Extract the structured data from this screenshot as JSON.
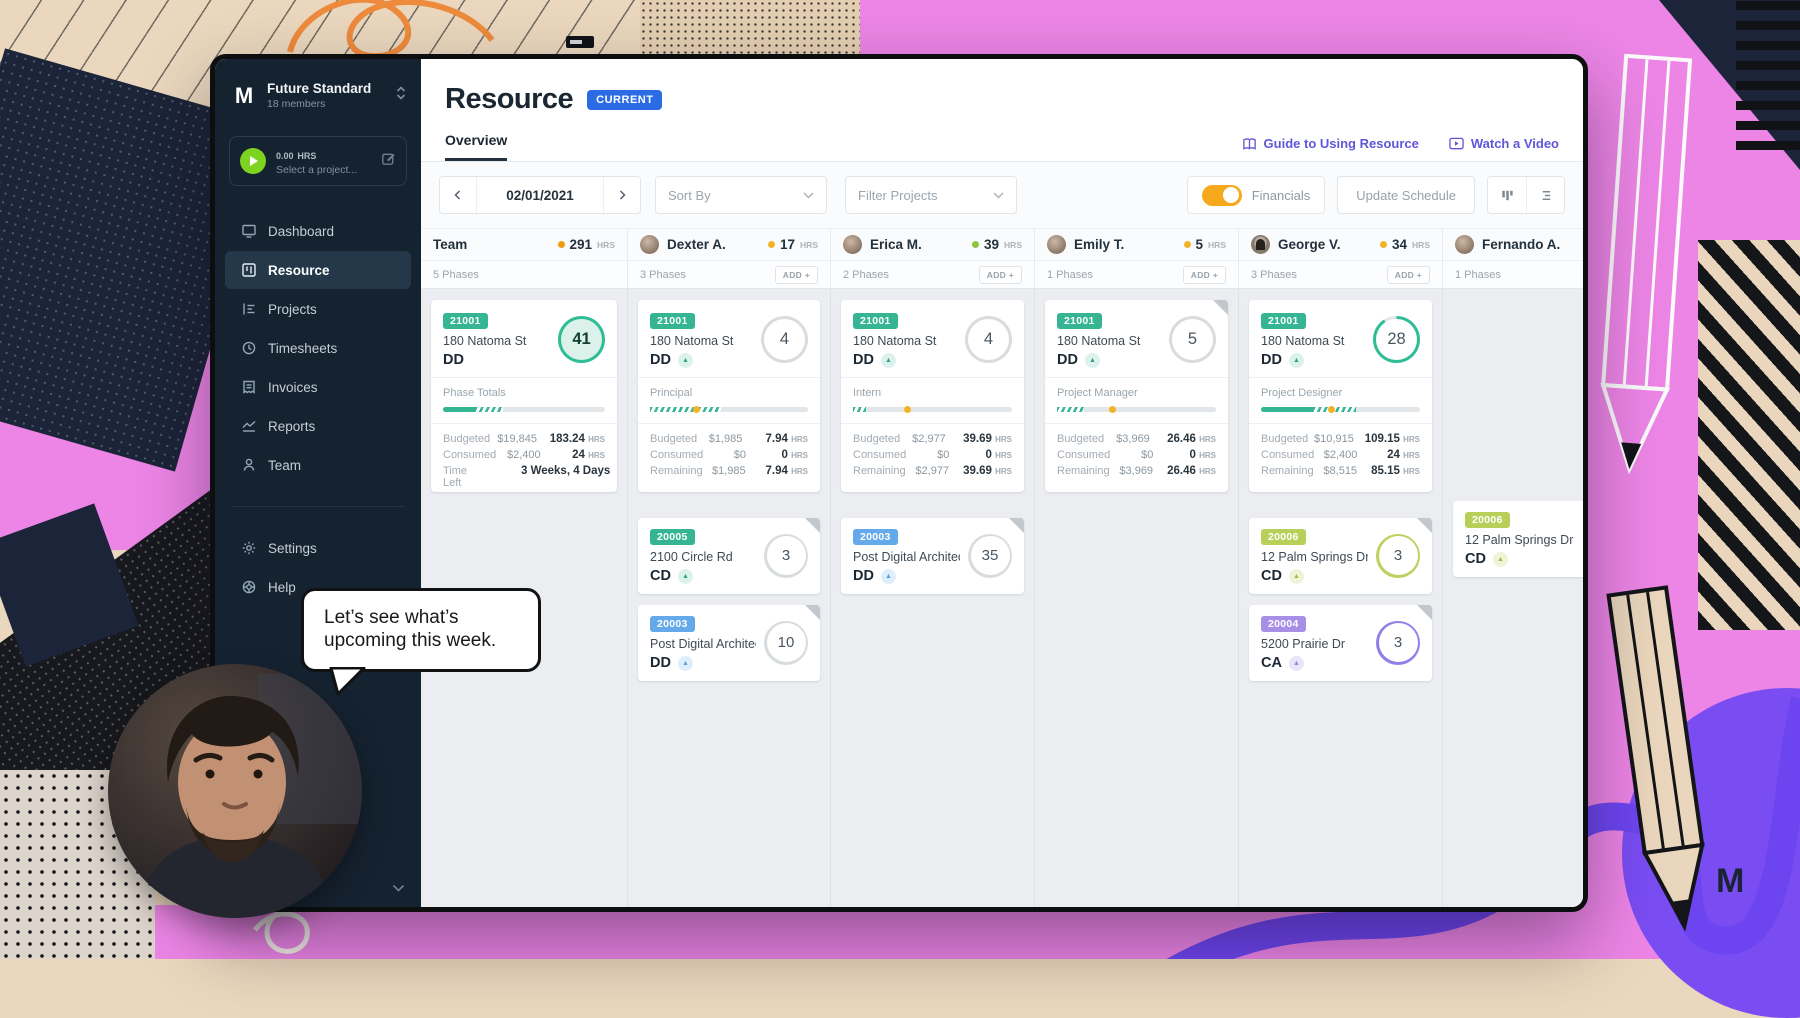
{
  "colors": {
    "accent_teal": "#35b593",
    "accent_blue": "#64a9e9",
    "accent_lime": "#b8cf59",
    "accent_purple": "#a78fe6",
    "ring_gray": "#d8dcdf",
    "dot_yellow": "#f2b32a",
    "dot_orange": "#ef9d10",
    "dot_green": "#8fc43f",
    "toggle_on": "#f6a91c",
    "current_badge": "#2b6be4",
    "link_purple": "#6156d8",
    "sidebar_bg": "#152230"
  },
  "brand": {
    "logo_glyph": "M"
  },
  "sidebar": {
    "workspace": {
      "name": "Future Standard",
      "members": "18 members"
    },
    "timer": {
      "hours": "0.00",
      "unit": "HRS",
      "placeholder": "Select a project..."
    },
    "nav": [
      {
        "label": "Dashboard"
      },
      {
        "label": "Resource"
      },
      {
        "label": "Projects"
      },
      {
        "label": "Timesheets"
      },
      {
        "label": "Invoices"
      },
      {
        "label": "Reports"
      },
      {
        "label": "Team"
      }
    ],
    "nav_bottom": [
      {
        "label": "Settings"
      },
      {
        "label": "Help"
      }
    ]
  },
  "header": {
    "title": "Resource",
    "badge": "CURRENT",
    "tab": "Overview",
    "guide_link": "Guide to Using Resource",
    "video_link": "Watch a Video"
  },
  "toolbar": {
    "date": "02/01/2021",
    "sort_by": "Sort By",
    "filter": "Filter Projects",
    "financials": "Financials",
    "update": "Update Schedule"
  },
  "board": {
    "columns": [
      {
        "name": "Team",
        "hrs": "291",
        "unit": "HRS",
        "phases": "5 Phases",
        "add": "",
        "dot": "#ef9d10"
      },
      {
        "name": "Dexter A.",
        "hrs": "17",
        "unit": "HRS",
        "phases": "3 Phases",
        "add": "ADD +",
        "dot": "#f2b32a"
      },
      {
        "name": "Erica M.",
        "hrs": "39",
        "unit": "HRS",
        "phases": "2 Phases",
        "add": "ADD +",
        "dot": "#8fc43f"
      },
      {
        "name": "Emily T.",
        "hrs": "5",
        "unit": "HRS",
        "phases": "1 Phases",
        "add": "ADD +",
        "dot": "#f2b32a"
      },
      {
        "name": "George V.",
        "hrs": "34",
        "unit": "HRS",
        "phases": "3 Phases",
        "add": "ADD +",
        "dot": "#f2b32a"
      },
      {
        "name": "Fernando A.",
        "hrs": "",
        "unit": "",
        "phases": "1 Phases",
        "add": "",
        "dot": ""
      }
    ],
    "row1": [
      {
        "code": "21001",
        "name": "180 Natoma St",
        "stage": "DD",
        "count": "41",
        "section": "Phase Totals",
        "badge_color": "#35b593",
        "stage_color": "",
        "stage_bg": "",
        "ring": {
          "color": "#2fbd96",
          "fill": "#dcf1e9",
          "pct": 100
        },
        "progress": {
          "solid": 20,
          "hatch": 17,
          "marker": -1
        },
        "fin": [
          {
            "label": "Budgeted",
            "money": "$19,845",
            "val": "183.24",
            "unit": "HRS"
          },
          {
            "label": "Consumed",
            "money": "$2,400",
            "val": "24",
            "unit": "HRS"
          },
          {
            "label": "Time Left",
            "money": "",
            "val": "3 Weeks, 4 Days",
            "unit": ""
          }
        ]
      },
      {
        "code": "21001",
        "name": "180 Natoma St",
        "stage": "DD",
        "count": "4",
        "section": "Principal",
        "badge_color": "#35b593",
        "stage_color": "#2fa486",
        "stage_bg": "#ddf2ec",
        "ring": {
          "color": "#d8dcdf",
          "fill": "#ffffff",
          "pct": 100
        },
        "progress": {
          "solid": 0,
          "hatch": 45,
          "marker": 27
        },
        "fin": [
          {
            "label": "Budgeted",
            "money": "$1,985",
            "val": "7.94",
            "unit": "HRS"
          },
          {
            "label": "Consumed",
            "money": "$0",
            "val": "0",
            "unit": "HRS"
          },
          {
            "label": "Remaining",
            "money": "$1,985",
            "val": "7.94",
            "unit": "HRS"
          }
        ]
      },
      {
        "code": "21001",
        "name": "180 Natoma St",
        "stage": "DD",
        "count": "4",
        "section": "Intern",
        "badge_color": "#35b593",
        "stage_color": "#2fa486",
        "stage_bg": "#ddf2ec",
        "ring": {
          "color": "#d8dcdf",
          "fill": "#ffffff",
          "pct": 100
        },
        "progress": {
          "solid": 0,
          "hatch": 8,
          "marker": 32
        },
        "fin": [
          {
            "label": "Budgeted",
            "money": "$2,977",
            "val": "39.69",
            "unit": "HRS"
          },
          {
            "label": "Consumed",
            "money": "$0",
            "val": "0",
            "unit": "HRS"
          },
          {
            "label": "Remaining",
            "money": "$2,977",
            "val": "39.69",
            "unit": "HRS"
          }
        ]
      },
      {
        "code": "21001",
        "name": "180 Natoma St",
        "stage": "DD",
        "count": "5",
        "section": "Project Manager",
        "badge_color": "#35b593",
        "stage_color": "#2fa486",
        "stage_bg": "#ddf2ec",
        "ring": {
          "color": "#d8dcdf",
          "fill": "#ffffff",
          "pct": 100
        },
        "progress": {
          "solid": 0,
          "hatch": 17,
          "marker": 33
        },
        "fin": [
          {
            "label": "Budgeted",
            "money": "$3,969",
            "val": "26.46",
            "unit": "HRS"
          },
          {
            "label": "Consumed",
            "money": "$0",
            "val": "0",
            "unit": "HRS"
          },
          {
            "label": "Remaining",
            "money": "$3,969",
            "val": "26.46",
            "unit": "HRS"
          }
        ]
      },
      {
        "code": "21001",
        "name": "180 Natoma St",
        "stage": "DD",
        "count": "28",
        "section": "Project Designer",
        "badge_color": "#35b593",
        "stage_color": "#2fa486",
        "stage_bg": "#ddf2ec",
        "ring": {
          "color": "#2fbd96",
          "fill": "#ffffff",
          "pct": 91
        },
        "progress": {
          "solid": 33,
          "hatch": 27,
          "marker": 42
        },
        "fin": [
          {
            "label": "Budgeted",
            "money": "$10,915",
            "val": "109.15",
            "unit": "HRS"
          },
          {
            "label": "Consumed",
            "money": "$2,400",
            "val": "24",
            "unit": "HRS"
          },
          {
            "label": "Remaining",
            "money": "$8,515",
            "val": "85.15",
            "unit": "HRS"
          }
        ]
      }
    ],
    "row2": [
      {
        "code": "20005",
        "name": "2100 Circle Rd",
        "stage": "CD",
        "count": "3",
        "badge_color": "#35b593",
        "stage_color": "#2fa486",
        "stage_bg": "#ddf2ec",
        "ring": {
          "color": "#d8dcdf",
          "fill": "#ffffff",
          "pct": 100
        }
      },
      {
        "code": "20003",
        "name": "Post Digital Architect...",
        "stage": "DD",
        "count": "10",
        "badge_color": "#64a9e9",
        "stage_color": "#5a9fe0",
        "stage_bg": "#dfeefb",
        "ring": {
          "color": "#d8dcdf",
          "fill": "#ffffff",
          "pct": 100
        }
      },
      {
        "code": "20003",
        "name": "Post Digital Architect...",
        "stage": "DD",
        "count": "35",
        "badge_color": "#64a9e9",
        "stage_color": "#5a9fe0",
        "stage_bg": "#dfeefb",
        "ring": {
          "color": "#d8dcdf",
          "fill": "#ffffff",
          "pct": 100
        }
      },
      {
        "code": "20006",
        "name": "12 Palm Springs Dr",
        "stage": "CD",
        "count": "3",
        "badge_color": "#b8cf59",
        "stage_color": "#a3bc3e",
        "stage_bg": "#eef4d8",
        "ring": {
          "color": "#bcd25e",
          "fill": "#ffffff",
          "pct": 100
        }
      },
      {
        "code": "20004",
        "name": "5200 Prairie Dr",
        "stage": "CA",
        "count": "3",
        "badge_color": "#a78fe6",
        "stage_color": "#8f7fe8",
        "stage_bg": "#eae6f9",
        "ring": {
          "color": "#8f7fe8",
          "fill": "#ffffff",
          "pct": 100
        }
      },
      {
        "code": "20006",
        "name": "12 Palm Springs Dr",
        "stage": "CD",
        "count": "",
        "badge_color": "#b8cf59",
        "stage_color": "#a3bc3e",
        "stage_bg": "#eef4d8",
        "ring": {
          "color": "#d8dcdf",
          "fill": "#ffffff",
          "pct": 100
        }
      }
    ]
  },
  "overlay": {
    "speech": "Let’s see what’s upcoming this week."
  }
}
